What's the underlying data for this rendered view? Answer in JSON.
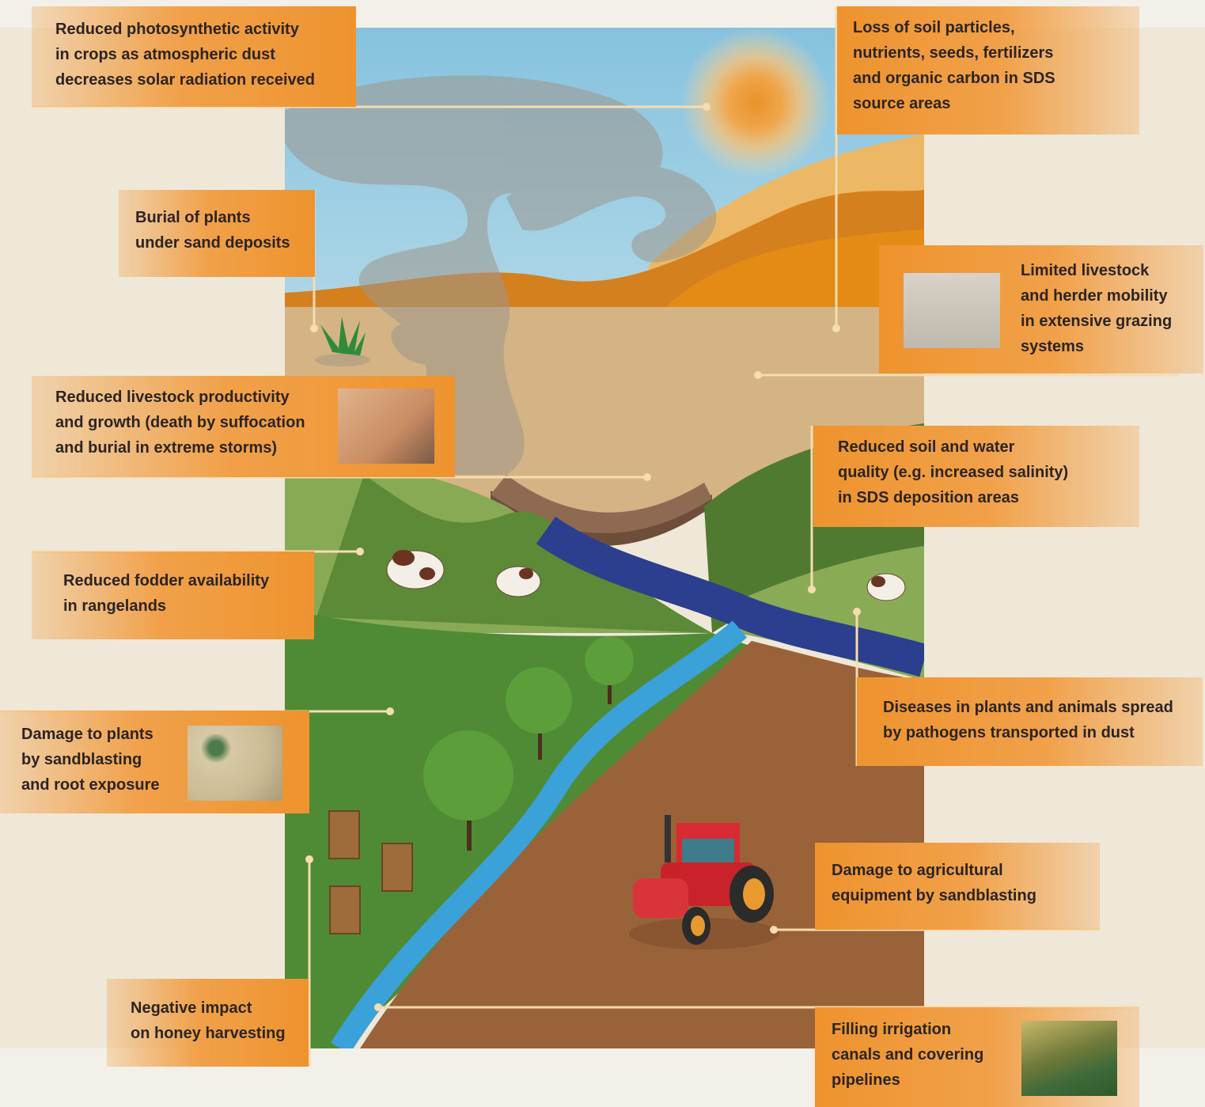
{
  "callouts": [
    {
      "lines": [
        "Reduced photosynthetic activity",
        "in crops as atmospheric dust",
        "decreases solar radiation received"
      ]
    },
    {
      "lines": [
        "Loss of soil particles,",
        "nutrients, seeds, fertilizers",
        "and organic carbon in SDS",
        "source areas"
      ]
    },
    {
      "lines": [
        "Burial of plants",
        "under sand deposits"
      ]
    },
    {
      "lines": [
        "Limited livestock",
        "and herder mobility",
        "in extensive grazing",
        "systems"
      ]
    },
    {
      "lines": [
        "Reduced livestock productivity",
        "and growth (death by suffocation",
        "and burial in extreme storms)"
      ]
    },
    {
      "lines": [
        "Reduced soil and water",
        "quality (e.g. increased salinity)",
        "in SDS deposition areas"
      ]
    },
    {
      "lines": [
        "Reduced fodder availability",
        "in rangelands"
      ]
    },
    {
      "lines": [
        "Diseases in plants and animals spread",
        "by pathogens transported in dust"
      ]
    },
    {
      "lines": [
        "Damage to plants",
        "by sandblasting",
        "and root exposure"
      ]
    },
    {
      "lines": [
        "Damage to agricultural",
        "equipment by sandblasting"
      ]
    },
    {
      "lines": [
        "Negative impact",
        "on honey harvesting"
      ]
    },
    {
      "lines": [
        "Filling irrigation",
        "canals and covering",
        "pipelines"
      ]
    }
  ]
}
